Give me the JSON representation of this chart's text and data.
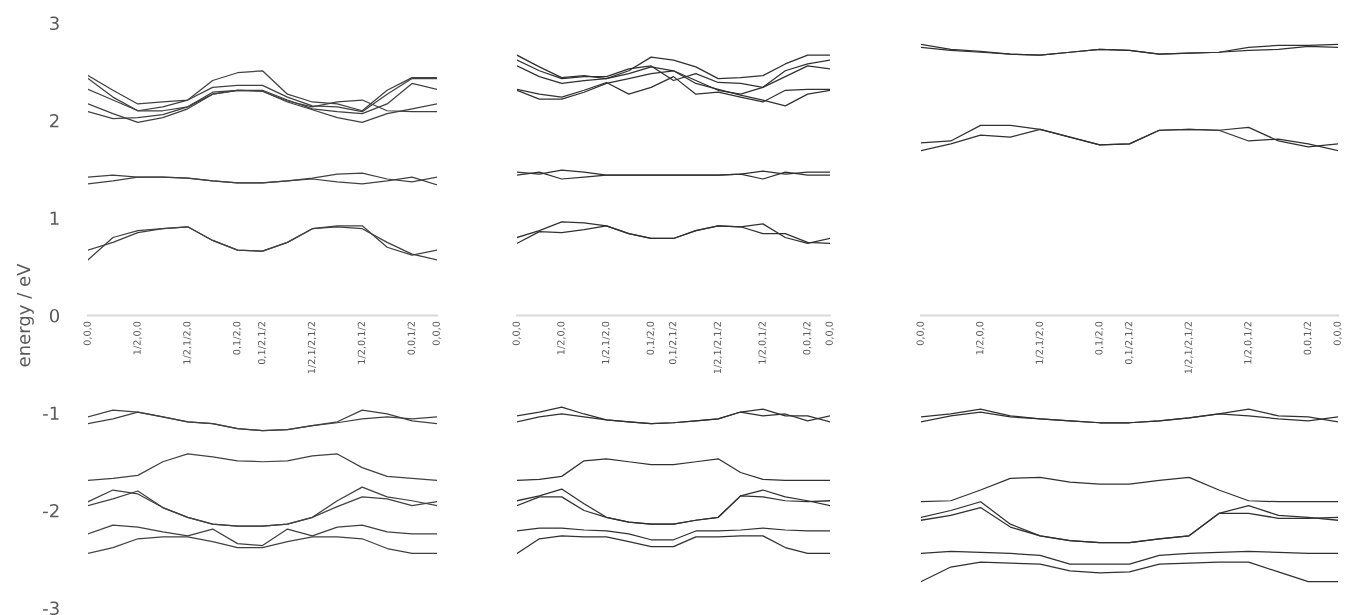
{
  "chart_data": [
    {
      "type": "line",
      "ylabel": "energy / eV",
      "categories": [
        "0,0,0",
        null,
        "1/2,0,0",
        null,
        "1/2,1/2,0",
        null,
        "0,1/2,0",
        "0,1/2,1/2",
        null,
        "1/2,1/2,1/2",
        null,
        "1/2,0,1/2",
        null,
        "0,0,1/2",
        "0,0,0"
      ],
      "ylim": [
        -3,
        3
      ],
      "yticks": [
        -3,
        -2,
        -1,
        0,
        1,
        2,
        3
      ],
      "series": [
        {
          "color": "#404040",
          "values": [
            2.46,
            2.31,
            2.17,
            2.19,
            2.21,
            2.41,
            2.49,
            2.51,
            2.27,
            2.19,
            2.17,
            2.1,
            2.31,
            2.44,
            2.44
          ]
        },
        {
          "color": "#404040",
          "values": [
            2.43,
            2.24,
            2.1,
            2.14,
            2.21,
            2.34,
            2.36,
            2.36,
            2.24,
            2.15,
            2.14,
            2.09,
            2.27,
            2.43,
            2.43
          ]
        },
        {
          "color": "#404040",
          "values": [
            2.32,
            2.21,
            2.1,
            2.1,
            2.14,
            2.29,
            2.31,
            2.31,
            2.21,
            2.12,
            2.09,
            2.07,
            2.17,
            2.38,
            2.32
          ]
        },
        {
          "color": "#404040",
          "values": [
            2.17,
            2.07,
            1.98,
            2.03,
            2.12,
            2.27,
            2.31,
            2.3,
            2.19,
            2.11,
            2.03,
            1.98,
            2.07,
            2.12,
            2.17
          ]
        },
        {
          "color": "#404040",
          "values": [
            2.09,
            2.02,
            2.03,
            2.06,
            2.14,
            2.27,
            2.31,
            2.3,
            2.2,
            2.14,
            2.19,
            2.21,
            2.1,
            2.09,
            2.09
          ]
        },
        {
          "color": "#404040",
          "values": [
            1.42,
            1.44,
            1.42,
            1.42,
            1.41,
            1.38,
            1.36,
            1.36,
            1.38,
            1.41,
            1.45,
            1.46,
            1.4,
            1.37,
            1.42
          ]
        },
        {
          "color": "#404040",
          "values": [
            1.35,
            1.38,
            1.42,
            1.42,
            1.41,
            1.38,
            1.36,
            1.36,
            1.38,
            1.4,
            1.37,
            1.35,
            1.38,
            1.42,
            1.34
          ]
        },
        {
          "color": "#404040",
          "values": [
            0.67,
            0.75,
            0.85,
            0.89,
            0.91,
            0.77,
            0.67,
            0.66,
            0.75,
            0.89,
            0.91,
            0.89,
            0.75,
            0.63,
            0.57
          ]
        },
        {
          "color": "#404040",
          "values": [
            0.57,
            0.8,
            0.87,
            0.89,
            0.91,
            0.77,
            0.67,
            0.66,
            0.75,
            0.89,
            0.92,
            0.92,
            0.7,
            0.62,
            0.67
          ]
        },
        {
          "color": "#404040",
          "values": [
            -1.04,
            -0.97,
            -0.99,
            -1.04,
            -1.09,
            -1.11,
            -1.16,
            -1.18,
            -1.17,
            -1.13,
            -1.09,
            -0.97,
            -1.01,
            -1.08,
            -1.11
          ]
        },
        {
          "color": "#404040",
          "values": [
            -1.11,
            -1.06,
            -0.99,
            -1.04,
            -1.09,
            -1.11,
            -1.16,
            -1.18,
            -1.17,
            -1.13,
            -1.1,
            -1.06,
            -1.04,
            -1.06,
            -1.04
          ]
        },
        {
          "color": "#404040",
          "values": [
            -1.69,
            -1.67,
            -1.64,
            -1.5,
            -1.42,
            -1.45,
            -1.49,
            -1.5,
            -1.49,
            -1.44,
            -1.42,
            -1.56,
            -1.65,
            -1.67,
            -1.69
          ]
        },
        {
          "color": "#404040",
          "values": [
            -1.91,
            -1.79,
            -1.83,
            -1.97,
            -2.07,
            -2.14,
            -2.16,
            -2.16,
            -2.14,
            -2.07,
            -1.9,
            -1.76,
            -1.86,
            -1.9,
            -1.95
          ]
        },
        {
          "color": "#404040",
          "values": [
            -1.95,
            -1.88,
            -1.8,
            -1.97,
            -2.07,
            -2.14,
            -2.16,
            -2.16,
            -2.14,
            -2.07,
            -1.96,
            -1.86,
            -1.88,
            -1.95,
            -1.91
          ]
        },
        {
          "color": "#404040",
          "values": [
            -2.24,
            -2.15,
            -2.17,
            -2.22,
            -2.26,
            -2.19,
            -2.34,
            -2.36,
            -2.19,
            -2.26,
            -2.17,
            -2.15,
            -2.22,
            -2.24,
            -2.24
          ]
        },
        {
          "color": "#404040",
          "values": [
            -2.44,
            -2.38,
            -2.29,
            -2.27,
            -2.27,
            -2.32,
            -2.38,
            -2.38,
            -2.32,
            -2.27,
            -2.27,
            -2.29,
            -2.39,
            -2.44,
            -2.44
          ]
        }
      ]
    },
    {
      "type": "line",
      "tick_labels": "x",
      "categories": [
        "0,0,0",
        null,
        "1/2,0,0",
        null,
        "1/2,1/2,0",
        null,
        "0,1/2,0",
        "0,1/2,1/2",
        null,
        "1/2,1/2,1/2",
        null,
        "1/2,0,1/2",
        null,
        "0,0,1/2",
        "0,0,0"
      ],
      "ylim": [
        -3,
        3
      ],
      "series": [
        {
          "color": "#303030",
          "values": [
            2.67,
            2.55,
            2.44,
            2.46,
            2.43,
            2.51,
            2.65,
            2.62,
            2.55,
            2.43,
            2.44,
            2.46,
            2.58,
            2.67,
            2.67
          ]
        },
        {
          "color": "#303030",
          "values": [
            2.62,
            2.51,
            2.43,
            2.45,
            2.45,
            2.53,
            2.56,
            2.41,
            2.48,
            2.39,
            2.38,
            2.34,
            2.51,
            2.58,
            2.62
          ]
        },
        {
          "color": "#303030",
          "values": [
            2.56,
            2.45,
            2.38,
            2.41,
            2.43,
            2.48,
            2.55,
            2.51,
            2.41,
            2.31,
            2.27,
            2.34,
            2.45,
            2.56,
            2.53
          ]
        },
        {
          "color": "#303030",
          "values": [
            2.32,
            2.27,
            2.24,
            2.31,
            2.39,
            2.27,
            2.34,
            2.45,
            2.27,
            2.29,
            2.24,
            2.19,
            2.31,
            2.32,
            2.32
          ]
        },
        {
          "color": "#303030",
          "values": [
            2.31,
            2.22,
            2.22,
            2.29,
            2.38,
            2.43,
            2.48,
            2.51,
            2.38,
            2.32,
            2.26,
            2.21,
            2.15,
            2.27,
            2.31
          ]
        },
        {
          "color": "#303030",
          "values": [
            1.47,
            1.45,
            1.49,
            1.47,
            1.44,
            1.44,
            1.44,
            1.44,
            1.44,
            1.44,
            1.45,
            1.48,
            1.45,
            1.47,
            1.47
          ]
        },
        {
          "color": "#303030",
          "values": [
            1.44,
            1.47,
            1.4,
            1.42,
            1.44,
            1.44,
            1.44,
            1.44,
            1.44,
            1.44,
            1.45,
            1.4,
            1.47,
            1.44,
            1.44
          ]
        },
        {
          "color": "#303030",
          "values": [
            0.8,
            0.87,
            0.96,
            0.95,
            0.92,
            0.84,
            0.79,
            0.79,
            0.87,
            0.92,
            0.91,
            0.94,
            0.8,
            0.74,
            0.79
          ]
        },
        {
          "color": "#303030",
          "values": [
            0.74,
            0.86,
            0.85,
            0.88,
            0.92,
            0.84,
            0.79,
            0.79,
            0.87,
            0.92,
            0.91,
            0.84,
            0.84,
            0.75,
            0.74
          ]
        },
        {
          "color": "#303030",
          "values": [
            -1.03,
            -0.99,
            -0.94,
            -1.01,
            -1.07,
            -1.09,
            -1.11,
            -1.1,
            -1.08,
            -1.06,
            -0.99,
            -0.96,
            -1.03,
            -1.03,
            -1.09
          ]
        },
        {
          "color": "#303030",
          "values": [
            -1.09,
            -1.04,
            -1.01,
            -1.04,
            -1.07,
            -1.09,
            -1.11,
            -1.1,
            -1.08,
            -1.06,
            -0.99,
            -1.03,
            -1.01,
            -1.08,
            -1.03
          ]
        },
        {
          "color": "#303030",
          "values": [
            -1.69,
            -1.68,
            -1.65,
            -1.49,
            -1.47,
            -1.5,
            -1.53,
            -1.53,
            -1.5,
            -1.47,
            -1.61,
            -1.68,
            -1.69,
            -1.69,
            -1.69
          ]
        },
        {
          "color": "#303030",
          "values": [
            -1.9,
            -1.85,
            -1.78,
            -1.93,
            -2.07,
            -2.12,
            -2.14,
            -2.14,
            -2.1,
            -2.07,
            -1.85,
            -1.79,
            -1.86,
            -1.9,
            -1.95
          ]
        },
        {
          "color": "#303030",
          "values": [
            -1.95,
            -1.86,
            -1.86,
            -2.0,
            -2.07,
            -2.12,
            -2.14,
            -2.14,
            -2.1,
            -2.07,
            -1.85,
            -1.86,
            -1.9,
            -1.91,
            -1.9
          ]
        },
        {
          "color": "#303030",
          "values": [
            -2.21,
            -2.18,
            -2.18,
            -2.2,
            -2.21,
            -2.24,
            -2.3,
            -2.3,
            -2.21,
            -2.21,
            -2.2,
            -2.18,
            -2.2,
            -2.21,
            -2.21
          ]
        },
        {
          "color": "#303030",
          "values": [
            -2.44,
            -2.29,
            -2.26,
            -2.27,
            -2.27,
            -2.32,
            -2.37,
            -2.37,
            -2.27,
            -2.27,
            -2.26,
            -2.26,
            -2.38,
            -2.44,
            -2.44
          ]
        }
      ]
    },
    {
      "type": "line",
      "tick_labels": "x",
      "categories": [
        "0,0,0",
        null,
        "1/2,0,0",
        null,
        "1/2,1/2,0",
        null,
        "0,1/2,0",
        "0,1/2,1/2",
        null,
        "1/2,1/2,1/2",
        null,
        "1/2,0,1/2",
        null,
        "0,0,1/2",
        "0,0,0"
      ],
      "ylim": [
        -3,
        3
      ],
      "series": [
        {
          "color": "#303030",
          "values": [
            2.78,
            2.73,
            2.71,
            2.68,
            2.67,
            2.7,
            2.73,
            2.72,
            2.68,
            2.69,
            2.7,
            2.75,
            2.77,
            2.77,
            2.78
          ]
        },
        {
          "color": "#303030",
          "values": [
            2.75,
            2.72,
            2.7,
            2.68,
            2.67,
            2.7,
            2.73,
            2.72,
            2.68,
            2.69,
            2.7,
            2.72,
            2.73,
            2.76,
            2.75
          ]
        },
        {
          "color": "#303030",
          "values": [
            1.77,
            1.79,
            1.95,
            1.95,
            1.91,
            1.83,
            1.75,
            1.76,
            1.9,
            1.91,
            1.9,
            1.93,
            1.79,
            1.73,
            1.76
          ]
        },
        {
          "color": "#303030",
          "values": [
            1.69,
            1.76,
            1.85,
            1.83,
            1.91,
            1.83,
            1.75,
            1.76,
            1.9,
            1.91,
            1.9,
            1.79,
            1.81,
            1.76,
            1.69
          ]
        },
        {
          "color": "#303030",
          "values": [
            -1.04,
            -1.01,
            -0.96,
            -1.03,
            -1.06,
            -1.08,
            -1.1,
            -1.1,
            -1.08,
            -1.05,
            -1.01,
            -0.96,
            -1.03,
            -1.04,
            -1.09
          ]
        },
        {
          "color": "#303030",
          "values": [
            -1.09,
            -1.03,
            -0.99,
            -1.04,
            -1.06,
            -1.08,
            -1.1,
            -1.1,
            -1.08,
            -1.05,
            -1.01,
            -1.03,
            -1.06,
            -1.08,
            -1.04
          ]
        },
        {
          "color": "#303030",
          "values": [
            -1.91,
            -1.9,
            -1.79,
            -1.67,
            -1.66,
            -1.71,
            -1.73,
            -1.73,
            -1.69,
            -1.66,
            -1.79,
            -1.9,
            -1.91,
            -1.91,
            -1.91
          ]
        },
        {
          "color": "#303030",
          "values": [
            -2.07,
            -2.0,
            -1.91,
            -2.14,
            -2.26,
            -2.31,
            -2.33,
            -2.33,
            -2.29,
            -2.26,
            -2.03,
            -1.95,
            -2.05,
            -2.07,
            -2.1
          ]
        },
        {
          "color": "#303030",
          "values": [
            -2.1,
            -2.05,
            -1.97,
            -2.17,
            -2.26,
            -2.31,
            -2.33,
            -2.33,
            -2.29,
            -2.26,
            -2.03,
            -2.03,
            -2.08,
            -2.08,
            -2.07
          ]
        },
        {
          "color": "#303030",
          "values": [
            -2.44,
            -2.42,
            -2.43,
            -2.44,
            -2.46,
            -2.55,
            -2.55,
            -2.55,
            -2.46,
            -2.44,
            -2.43,
            -2.42,
            -2.43,
            -2.44,
            -2.44
          ]
        },
        {
          "color": "#303030",
          "values": [
            -2.73,
            -2.58,
            -2.53,
            -2.54,
            -2.55,
            -2.62,
            -2.64,
            -2.63,
            -2.55,
            -2.54,
            -2.53,
            -2.53,
            -2.63,
            -2.73,
            -2.73
          ]
        }
      ]
    }
  ]
}
